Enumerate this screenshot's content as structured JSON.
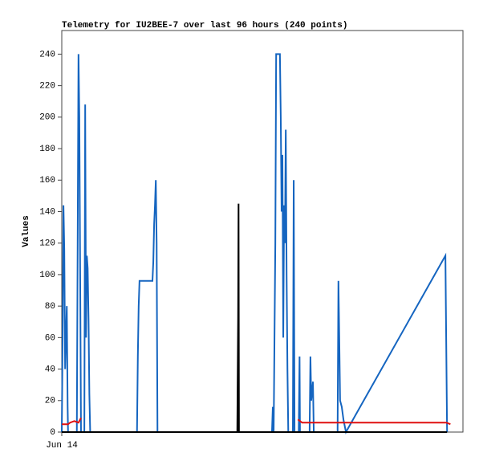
{
  "chart_data": {
    "type": "line",
    "title": "Telemetry for IU2BEE-7 over last 96 hours (240 points)",
    "y_label": "Values",
    "xlim": [
      0,
      96
    ],
    "xticks": [
      {
        "value": 0,
        "label": "Jun 14"
      }
    ],
    "ylim": [
      0,
      255
    ],
    "yticks": [
      0,
      20,
      40,
      60,
      80,
      100,
      120,
      140,
      160,
      180,
      200,
      220,
      240
    ],
    "series": [
      {
        "color": "#1565c0",
        "x": [
          0,
          0.2,
          0.4,
          0.6,
          0.8,
          1.0,
          1.2,
          1.4,
          1.5,
          3.6,
          3.8,
          4.0,
          4.2,
          4.4,
          4.6,
          5.4,
          5.6,
          5.8,
          6.0,
          6.2,
          6.4,
          6.6,
          6.8,
          18.0,
          18.2,
          18.4,
          18.6,
          21.7,
          21.9,
          22.1,
          22.3,
          22.5,
          22.7,
          22.9,
          50.3,
          50.5,
          50.7,
          51.1,
          51.3,
          52.2,
          52.4,
          52.6,
          52.8,
          53.0,
          53.2,
          53.4,
          53.6,
          53.8,
          54.0,
          54.2,
          55.3,
          55.5,
          55.7,
          56.7,
          56.9,
          57.0,
          59.3,
          59.5,
          59.7,
          60.1,
          60.3,
          66.0,
          66.2,
          66.4,
          66.6,
          67.0,
          67.4,
          68.0,
          91.8,
          92.0,
          92.2
        ],
        "values": [
          0,
          60,
          144,
          116,
          40,
          60,
          80,
          16,
          0,
          0,
          120,
          240,
          200,
          100,
          0,
          0,
          208,
          60,
          112,
          104,
          72,
          24,
          0,
          0,
          48,
          80,
          96,
          96,
          108,
          132,
          144,
          160,
          120,
          0,
          0,
          16,
          0,
          120,
          240,
          240,
          200,
          140,
          176,
          60,
          144,
          120,
          192,
          100,
          40,
          0,
          0,
          160,
          0,
          0,
          48,
          0,
          0,
          48,
          20,
          32,
          0,
          0,
          96,
          60,
          20,
          16,
          8,
          0,
          112,
          56,
          0
        ]
      },
      {
        "color": "#e01010",
        "x": [
          0,
          1.5,
          2.0,
          3.0,
          4.0,
          4.6,
          4.8,
          56.5,
          57.5,
          92.0,
          93.0
        ],
        "values": [
          5,
          5,
          6,
          7,
          6,
          9,
          null,
          8,
          6,
          6,
          5
        ]
      },
      {
        "color": "#000000",
        "x": [
          0,
          42.0,
          42.2,
          42.3,
          42.4,
          92.2
        ],
        "values": [
          0,
          0,
          73,
          145,
          0,
          0
        ]
      }
    ]
  }
}
